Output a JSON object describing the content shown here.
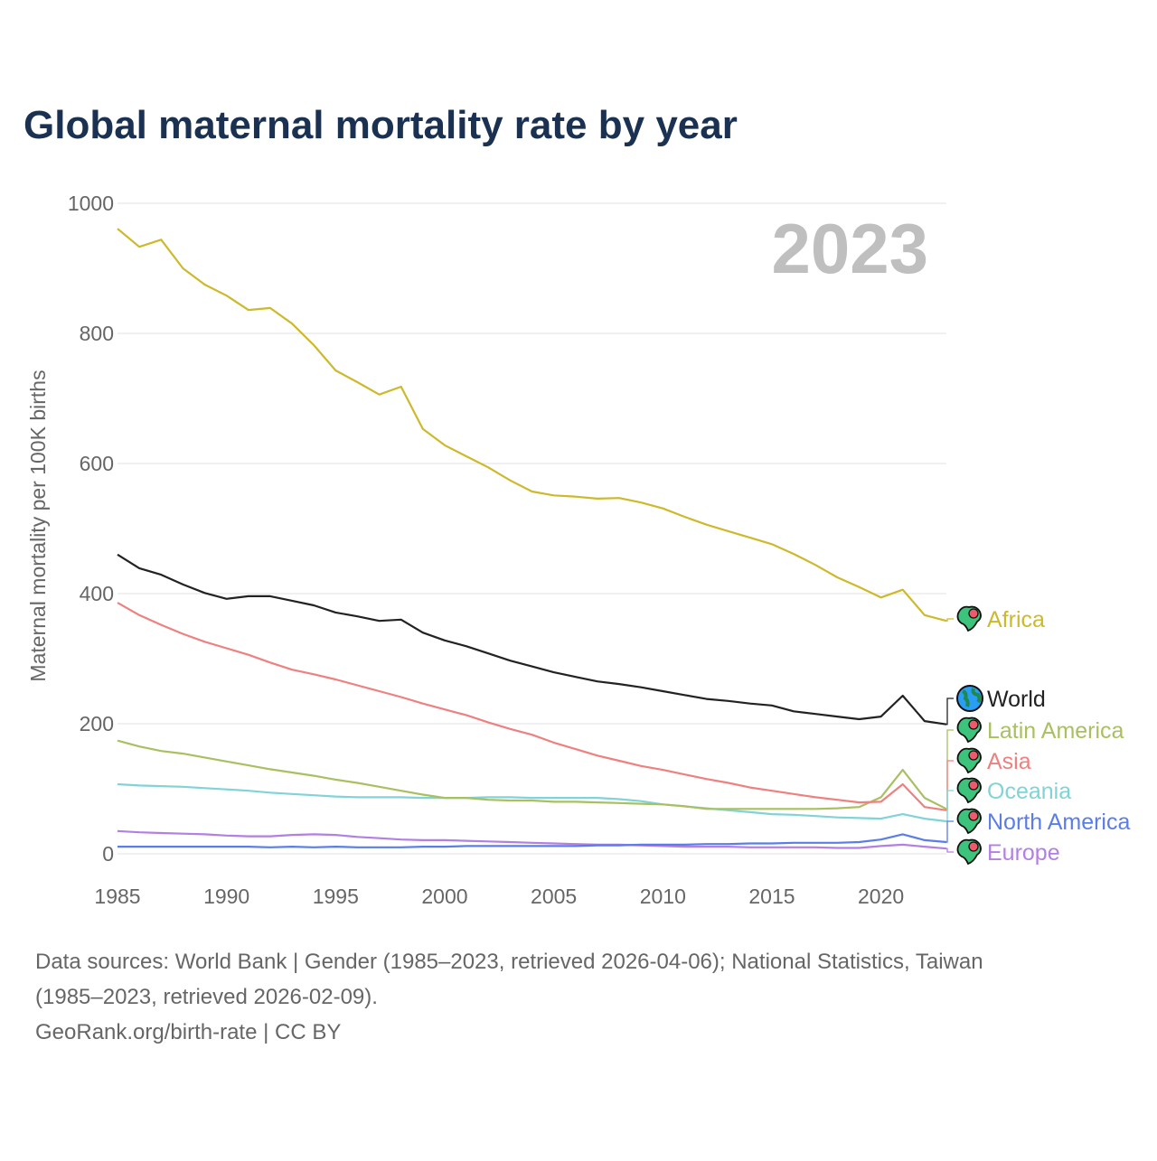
{
  "chart_data": {
    "type": "line",
    "title": "Global maternal mortality rate by year",
    "xlabel": "",
    "ylabel": "Maternal mortality per 100K births",
    "year_label": "2023",
    "xlim": [
      1985,
      2023
    ],
    "ylim": [
      0,
      1000
    ],
    "x_ticks": [
      "1985",
      "1990",
      "1995",
      "2000",
      "2005",
      "2010",
      "2015",
      "2020"
    ],
    "y_ticks": [
      "0",
      "200",
      "400",
      "600",
      "800",
      "1000"
    ],
    "grid": true,
    "legend": "right (end-of-line labels)",
    "x": [
      1985,
      1986,
      1987,
      1988,
      1989,
      1990,
      1991,
      1992,
      1993,
      1994,
      1995,
      1996,
      1997,
      1998,
      1999,
      2000,
      2001,
      2002,
      2003,
      2004,
      2005,
      2006,
      2007,
      2008,
      2009,
      2010,
      2011,
      2012,
      2013,
      2014,
      2015,
      2016,
      2017,
      2018,
      2019,
      2020,
      2021,
      2022,
      2023
    ],
    "series": [
      {
        "name": "Africa",
        "color": "#cdb92c",
        "icon": "africa-map-pin-icon",
        "values": [
          961,
          933,
          944,
          900,
          875,
          858,
          836,
          839,
          815,
          782,
          743,
          725,
          706,
          718,
          653,
          628,
          611,
          594,
          574,
          557,
          551,
          549,
          546,
          547,
          540,
          531,
          518,
          506,
          496,
          486,
          476,
          461,
          444,
          425,
          410,
          394,
          406,
          367,
          358
        ]
      },
      {
        "name": "World",
        "color": "#222222",
        "icon": "globe-icon",
        "values": [
          460,
          439,
          429,
          414,
          401,
          392,
          396,
          396,
          389,
          382,
          371,
          365,
          358,
          360,
          340,
          328,
          319,
          308,
          297,
          288,
          279,
          272,
          265,
          261,
          256,
          250,
          244,
          238,
          235,
          231,
          228,
          219,
          215,
          211,
          207,
          211,
          243,
          204,
          199
        ]
      },
      {
        "name": "Latin America",
        "color": "#a9c060",
        "icon": "latin-america-map-pin-icon",
        "values": [
          174,
          165,
          158,
          154,
          148,
          142,
          136,
          130,
          125,
          120,
          114,
          109,
          103,
          97,
          91,
          86,
          86,
          83,
          82,
          82,
          80,
          80,
          79,
          78,
          77,
          76,
          73,
          69,
          69,
          69,
          69,
          69,
          69,
          70,
          72,
          87,
          129,
          86,
          69
        ]
      },
      {
        "name": "Asia",
        "color": "#ee8080",
        "icon": "asia-map-pin-icon",
        "values": [
          386,
          367,
          352,
          338,
          326,
          316,
          306,
          294,
          283,
          276,
          268,
          259,
          250,
          241,
          231,
          222,
          213,
          202,
          192,
          183,
          171,
          161,
          151,
          143,
          135,
          129,
          122,
          115,
          109,
          102,
          97,
          92,
          87,
          83,
          79,
          80,
          107,
          72,
          67
        ]
      },
      {
        "name": "Oceania",
        "color": "#80d3d6",
        "icon": "oceania-map-pin-icon",
        "values": [
          107,
          105,
          104,
          103,
          101,
          99,
          97,
          94,
          92,
          90,
          88,
          87,
          87,
          87,
          86,
          86,
          86,
          87,
          87,
          86,
          86,
          86,
          86,
          84,
          81,
          76,
          73,
          70,
          67,
          64,
          61,
          60,
          58,
          56,
          55,
          54,
          61,
          54,
          50
        ]
      },
      {
        "name": "North America",
        "color": "#5b7de8",
        "icon": "north-america-map-pin-icon",
        "values": [
          11,
          11,
          11,
          11,
          11,
          11,
          11,
          10,
          11,
          10,
          11,
          10,
          10,
          10,
          11,
          11,
          12,
          12,
          12,
          12,
          12,
          12,
          13,
          13,
          14,
          14,
          14,
          15,
          15,
          16,
          16,
          17,
          17,
          17,
          18,
          22,
          30,
          21,
          18
        ]
      },
      {
        "name": "Europe",
        "color": "#b27fe2",
        "icon": "europe-map-pin-icon",
        "values": [
          35,
          33,
          32,
          31,
          30,
          28,
          27,
          27,
          29,
          30,
          29,
          26,
          24,
          22,
          21,
          21,
          20,
          19,
          18,
          17,
          16,
          15,
          14,
          14,
          13,
          12,
          11,
          11,
          11,
          10,
          10,
          10,
          10,
          9,
          9,
          12,
          14,
          11,
          8
        ]
      }
    ],
    "footer": [
      "Data sources: World Bank | Gender (1985–2023, retrieved 2026-04-06); National Statistics, Taiwan",
      "(1985–2023, retrieved 2026-02-09).",
      "GeoRank.org/birth-rate | CC BY"
    ]
  }
}
